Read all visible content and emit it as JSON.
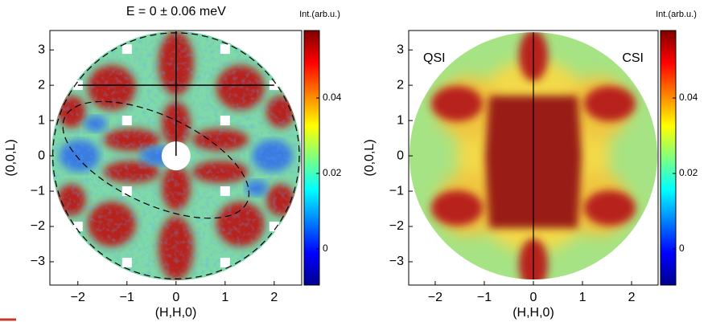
{
  "chart_data": [
    {
      "type": "heatmap",
      "title": "E = 0 ± 0.06 meV",
      "xlabel": "(H,H,0)",
      "ylabel": "(0,0,L)",
      "xlim": [
        -2.57,
        2.56
      ],
      "ylim": [
        -3.66,
        3.55
      ],
      "xticks": [
        {
          "value": -2,
          "label": "−2"
        },
        {
          "value": -1,
          "label": "−1"
        },
        0,
        1,
        2
      ],
      "yticks": [
        {
          "value": -3,
          "label": "−3"
        },
        {
          "value": -2,
          "label": "−2"
        },
        {
          "value": -1,
          "label": "−1"
        },
        0,
        1,
        2,
        3
      ],
      "colormap": "jet",
      "colorbar": {
        "label": "Int.(arb.u.)",
        "lim": [
          -0.0096,
          0.0579
        ],
        "ticks": [
          0,
          0.02,
          0.04
        ]
      }
    },
    {
      "type": "heatmap",
      "xlabel": "(H,H,0)",
      "ylabel": "(0,0,L)",
      "xlim": [
        -2.54,
        2.54
      ],
      "ylim": [
        -3.66,
        3.55
      ],
      "xticks": [
        {
          "value": -2,
          "label": "−2"
        },
        {
          "value": -1,
          "label": "−1"
        },
        0,
        1,
        2
      ],
      "yticks": [
        {
          "value": -3,
          "label": "−3"
        },
        {
          "value": -2,
          "label": "−2"
        },
        {
          "value": -1,
          "label": "−1"
        },
        0,
        1,
        2,
        3
      ],
      "annotations": [
        "QSI",
        "CSI"
      ],
      "colormap": "jet",
      "colorbar": {
        "label": "Int.(arb.u.)",
        "lim": [
          -0.0096,
          0.0579
        ],
        "ticks": [
          0,
          0.02,
          0.04
        ]
      }
    }
  ]
}
